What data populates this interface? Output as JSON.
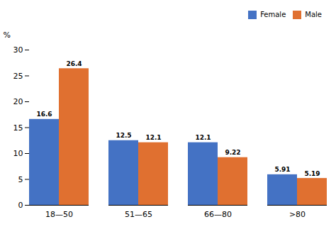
{
  "chart_data": {
    "type": "bar",
    "categories": [
      "18—50",
      "51—65",
      "66—80",
      ">80"
    ],
    "series": [
      {
        "name": "Female",
        "color": "#4472C4",
        "values": [
          16.6,
          12.5,
          12.1,
          5.91
        ]
      },
      {
        "name": "Male",
        "color": "#E07030",
        "values": [
          26.4,
          12.1,
          9.22,
          5.19
        ]
      }
    ],
    "ylabel": "%",
    "ylim": [
      0,
      30
    ],
    "yticks": [
      0,
      5,
      10,
      15,
      20,
      25,
      30
    ],
    "legend": "upper right",
    "data_labels": true
  }
}
